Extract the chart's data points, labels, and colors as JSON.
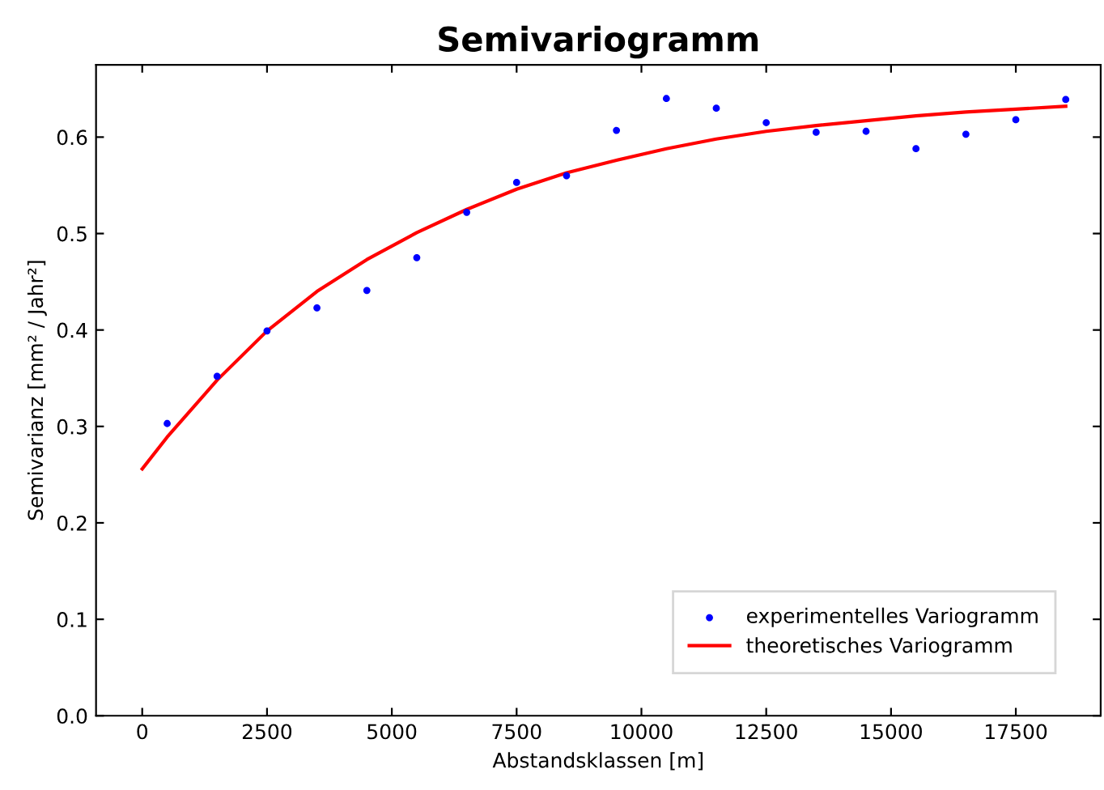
{
  "chart_data": {
    "type": "scatter",
    "title": "Semivariogramm",
    "xlabel": "Abstandsklassen [m]",
    "ylabel": "Semivarianz [mm² / Jahr²]",
    "series": [
      {
        "name": "experimentelles Variogramm",
        "color": "#0000ff",
        "marker": "circle",
        "x": [
          500,
          1500,
          2500,
          3500,
          4500,
          5500,
          6500,
          7500,
          8500,
          9500,
          10500,
          11500,
          12500,
          13500,
          14500,
          15500,
          16500,
          17500,
          18500
        ],
        "values": [
          0.303,
          0.352,
          0.399,
          0.423,
          0.441,
          0.475,
          0.522,
          0.553,
          0.56,
          0.607,
          0.64,
          0.63,
          0.615,
          0.605,
          0.606,
          0.588,
          0.603,
          0.618,
          0.639
        ]
      },
      {
        "name": "theoretisches Variogramm",
        "type": "line",
        "color": "#ff0000",
        "line_style": "solid",
        "x": [
          0,
          500,
          1500,
          2500,
          3500,
          4500,
          5500,
          6500,
          7500,
          8500,
          9500,
          10500,
          11500,
          12500,
          13500,
          14500,
          15500,
          16500,
          17500,
          18500
        ],
        "values": [
          0.256,
          0.289,
          0.348,
          0.399,
          0.44,
          0.473,
          0.501,
          0.525,
          0.546,
          0.563,
          0.576,
          0.588,
          0.598,
          0.606,
          0.612,
          0.617,
          0.622,
          0.626,
          0.629,
          0.632
        ]
      }
    ],
    "xlim": [
      -925,
      19200
    ],
    "xticks": [
      0,
      2500,
      5000,
      7500,
      10000,
      12500,
      15000,
      17500
    ],
    "ylim": [
      0,
      0.675
    ],
    "yticks": [
      {
        "value": 0,
        "label": "0.0"
      },
      0.1,
      0.2,
      0.3,
      0.4,
      0.5,
      0.6
    ],
    "grid": false,
    "legend": "lower right"
  }
}
